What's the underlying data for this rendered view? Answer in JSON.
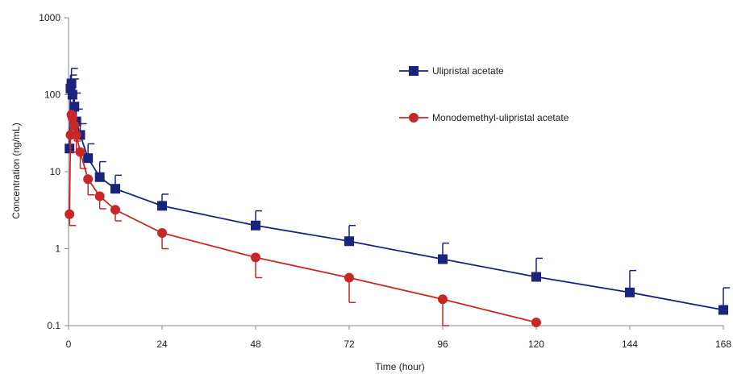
{
  "chart_data": {
    "type": "line",
    "title": "",
    "xlabel": "Time (hour)",
    "ylabel": "Concentration (ng/mL)",
    "xlim": [
      0,
      168
    ],
    "ylim": [
      0.1,
      1000
    ],
    "yscale": "log",
    "grid": false,
    "legend_position": "top-right",
    "x_ticks": [
      "0",
      "24",
      "48",
      "72",
      "96",
      "120",
      "144",
      "168"
    ],
    "y_ticks": [
      "0.1",
      "1",
      "10",
      "100",
      "1000"
    ],
    "series": [
      {
        "name": "Ulipristal acetate",
        "color": "#1a237e",
        "marker": "square",
        "x": [
          0.25,
          0.5,
          0.75,
          1,
          1.5,
          2,
          3,
          5,
          8,
          12,
          24,
          48,
          72,
          96,
          120,
          144,
          168
        ],
        "y": [
          20,
          120,
          140,
          100,
          70,
          45,
          30,
          15,
          8.5,
          6,
          3.6,
          2.0,
          1.25,
          0.73,
          0.43,
          0.27,
          0.16
        ],
        "error_plus": [
          8,
          60,
          80,
          60,
          35,
          20,
          12,
          8,
          5,
          3,
          1.5,
          1.1,
          0.75,
          0.45,
          0.32,
          0.25,
          0.15
        ]
      },
      {
        "name": "Monodemethyl-ulipristal acetate",
        "color": "#c62828",
        "marker": "circle",
        "x": [
          0.25,
          0.5,
          0.75,
          1,
          1.5,
          2,
          3,
          5,
          8,
          12,
          24,
          48,
          72,
          96,
          120
        ],
        "y": [
          2.8,
          30,
          55,
          50,
          40,
          30,
          18,
          8,
          4.8,
          3.2,
          1.6,
          0.77,
          0.42,
          0.22,
          0.11
        ],
        "error_minus": [
          0.8,
          12,
          20,
          18,
          15,
          12,
          7,
          3,
          1.5,
          0.9,
          0.6,
          0.35,
          0.22,
          0.12,
          0.0
        ]
      }
    ]
  }
}
